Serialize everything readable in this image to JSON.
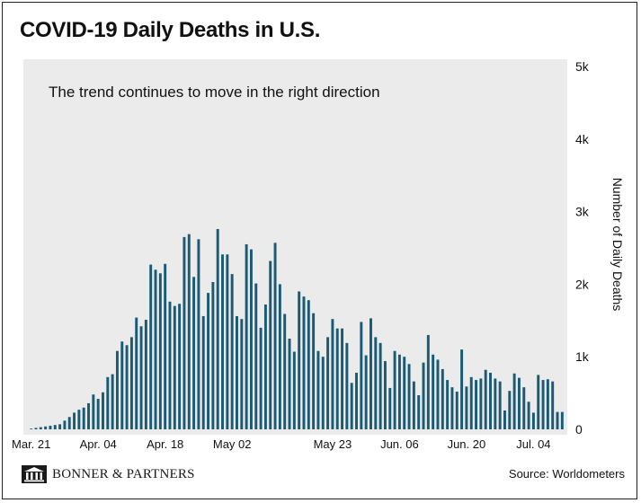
{
  "title": "COVID-19 Daily Deaths in U.S.",
  "subtitle": "The trend continues to move in the right direction",
  "brand": "BONNER & PARTNERS",
  "source": "Source: Worldometers",
  "colors": {
    "bar": "#1a5a73",
    "plot_bg": "#ebebeb",
    "frame": "#222222"
  },
  "chart_data": {
    "type": "bar",
    "ylabel": "Number of Daily Deaths",
    "ylim": [
      0,
      5000
    ],
    "y_axis_position": "right",
    "yticks": [
      {
        "value": 0,
        "label": "0"
      },
      {
        "value": 1000,
        "label": "1k"
      },
      {
        "value": 2000,
        "label": "2k"
      },
      {
        "value": 3000,
        "label": "3k"
      },
      {
        "value": 4000,
        "label": "4k"
      },
      {
        "value": 5000,
        "label": "5k"
      }
    ],
    "xticks": [
      {
        "index": 0,
        "label": "Mar. 21"
      },
      {
        "index": 14,
        "label": "Apr. 04"
      },
      {
        "index": 28,
        "label": "Apr. 18"
      },
      {
        "index": 42,
        "label": "May 02"
      },
      {
        "index": 63,
        "label": "May 23"
      },
      {
        "index": 77,
        "label": "Jun. 06"
      },
      {
        "index": 91,
        "label": "Jun. 20"
      },
      {
        "index": 105,
        "label": "Jul. 04"
      }
    ],
    "values": [
      10,
      20,
      30,
      40,
      50,
      60,
      70,
      120,
      170,
      230,
      270,
      300,
      360,
      480,
      420,
      510,
      720,
      760,
      1080,
      1210,
      1160,
      1270,
      1540,
      1420,
      1510,
      2270,
      2200,
      2150,
      2280,
      1760,
      1700,
      1730,
      2650,
      2690,
      2100,
      2620,
      1560,
      1880,
      2030,
      2760,
      2410,
      2410,
      2140,
      1560,
      1520,
      2550,
      2480,
      2010,
      1400,
      1720,
      2320,
      2570,
      2000,
      1590,
      1250,
      1070,
      1900,
      1830,
      1780,
      1600,
      1080,
      1000,
      1270,
      1520,
      1390,
      1390,
      1190,
      640,
      780,
      1480,
      1020,
      1530,
      1270,
      1190,
      940,
      570,
      1080,
      1030,
      1000,
      900,
      660,
      470,
      920,
      1300,
      1030,
      960,
      830,
      680,
      580,
      520,
      1100,
      590,
      720,
      680,
      700,
      820,
      780,
      700,
      660,
      260,
      530,
      770,
      710,
      580,
      380,
      230,
      750,
      680,
      690,
      660,
      240,
      240
    ]
  }
}
